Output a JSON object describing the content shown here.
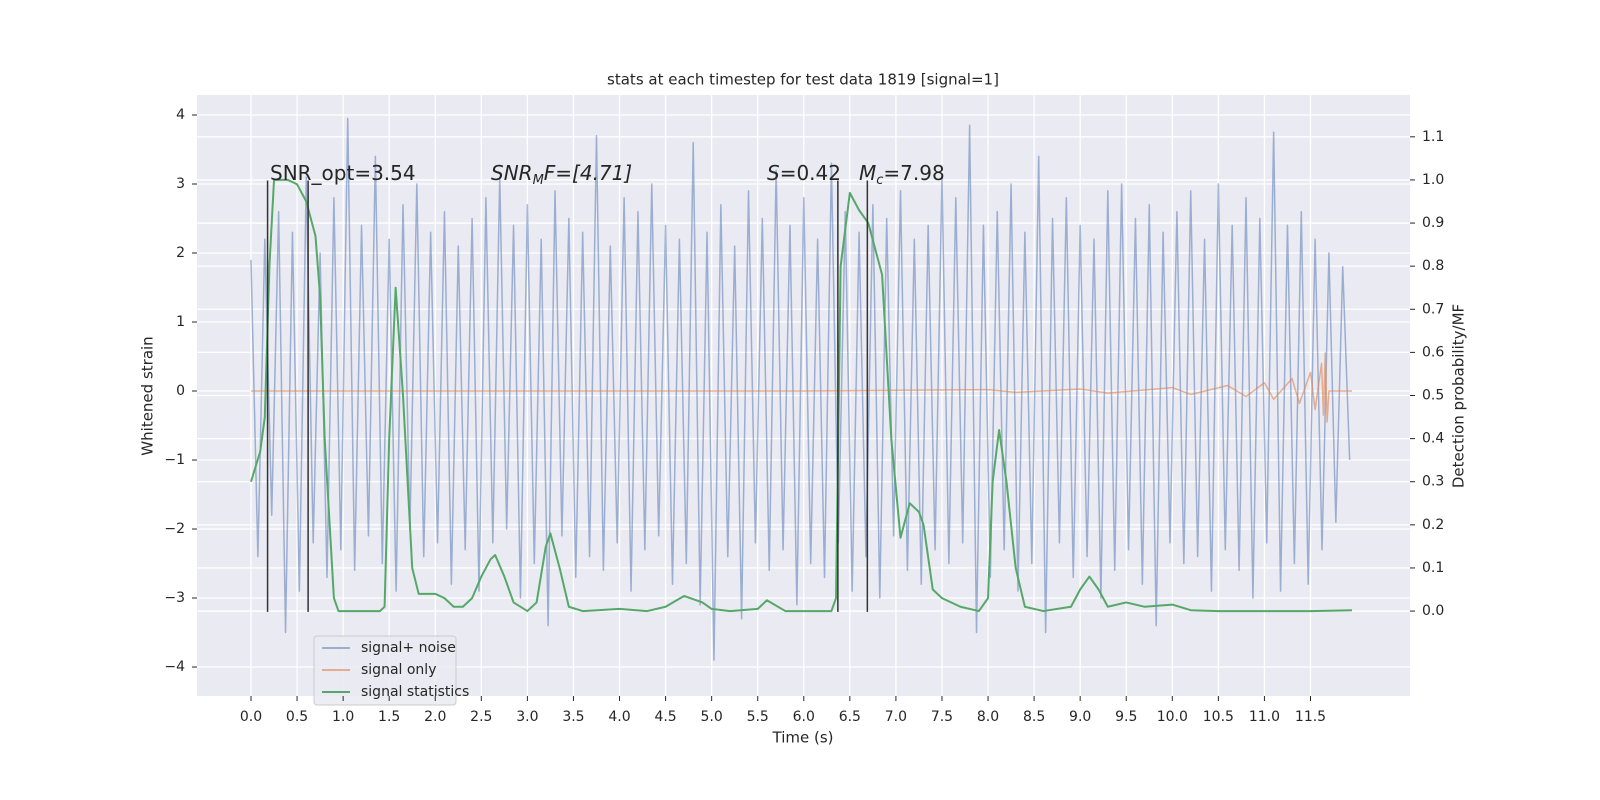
{
  "chart_data": {
    "type": "line",
    "title": "stats at each timestep for test data 1819 [signal=1]",
    "xlabel": "Time (s)",
    "ylabel": "Whitened strain",
    "y2label": "Detection probability/MF",
    "xlim": [
      -0.586,
      12.58
    ],
    "ylim": [
      -4.42,
      4.29
    ],
    "y2lim": [
      -0.197,
      1.197
    ],
    "xticks": [
      {
        "value": 0,
        "label": "0.0"
      },
      0.5,
      {
        "value": 1,
        "label": "1.0"
      },
      1.5,
      {
        "value": 2,
        "label": "2.0"
      },
      2.5,
      {
        "value": 3,
        "label": "3.0"
      },
      3.5,
      {
        "value": 4,
        "label": "4.0"
      },
      4.5,
      {
        "value": 5,
        "label": "5.0"
      },
      5.5,
      {
        "value": 6,
        "label": "6.0"
      },
      6.5,
      {
        "value": 7,
        "label": "7.0"
      },
      7.5,
      {
        "value": 8,
        "label": "8.0"
      },
      8.5,
      {
        "value": 9,
        "label": "9.0"
      },
      9.5,
      {
        "value": 10,
        "label": "10.0"
      },
      10.5,
      {
        "value": 11,
        "label": "11.0"
      },
      11.5
    ],
    "yticks": [
      {
        "value": -4,
        "label": "−4"
      },
      {
        "value": -3,
        "label": "−3"
      },
      {
        "value": -2,
        "label": "−2"
      },
      {
        "value": -1,
        "label": "−1"
      },
      0,
      1,
      2,
      3,
      4
    ],
    "y2ticks": [
      {
        "value": 0,
        "label": "0.0"
      },
      0.1,
      0.2,
      0.3,
      0.4,
      0.5,
      0.6,
      0.7,
      0.8,
      0.9,
      {
        "value": 1,
        "label": "1.0"
      },
      1.1
    ],
    "grid": true,
    "legend": "lower left",
    "series": [
      {
        "name": "signal+ noise",
        "color": "#4c72b0",
        "x": [
          0,
          0.075,
          0.15,
          0.225,
          0.3,
          0.375,
          0.45,
          0.525,
          0.6,
          0.675,
          0.75,
          0.825,
          0.9,
          0.975,
          1.05,
          1.125,
          1.2,
          1.275,
          1.35,
          1.425,
          1.5,
          1.575,
          1.65,
          1.725,
          1.8,
          1.875,
          1.95,
          2.025,
          2.1,
          2.175,
          2.25,
          2.325,
          2.4,
          2.475,
          2.55,
          2.625,
          2.7,
          2.775,
          2.85,
          2.925,
          3,
          3.075,
          3.15,
          3.225,
          3.3,
          3.375,
          3.45,
          3.525,
          3.6,
          3.675,
          3.75,
          3.825,
          3.9,
          3.975,
          4.05,
          4.125,
          4.2,
          4.275,
          4.35,
          4.425,
          4.5,
          4.575,
          4.65,
          4.725,
          4.8,
          4.875,
          4.95,
          5.025,
          5.1,
          5.175,
          5.25,
          5.325,
          5.4,
          5.475,
          5.55,
          5.625,
          5.7,
          5.775,
          5.85,
          5.925,
          6,
          6.075,
          6.15,
          6.225,
          6.3,
          6.375,
          6.45,
          6.525,
          6.6,
          6.675,
          6.75,
          6.825,
          6.9,
          6.975,
          7.05,
          7.125,
          7.2,
          7.275,
          7.35,
          7.425,
          7.5,
          7.575,
          7.65,
          7.725,
          7.8,
          7.875,
          7.95,
          8.025,
          8.1,
          8.175,
          8.25,
          8.325,
          8.4,
          8.475,
          8.55,
          8.625,
          8.7,
          8.775,
          8.85,
          8.925,
          9,
          9.075,
          9.15,
          9.225,
          9.3,
          9.375,
          9.45,
          9.525,
          9.6,
          9.675,
          9.75,
          9.825,
          9.9,
          9.975,
          10.05,
          10.125,
          10.2,
          10.275,
          10.35,
          10.425,
          10.5,
          10.575,
          10.65,
          10.725,
          10.8,
          10.875,
          10.95,
          11.025,
          11.1,
          11.175,
          11.25,
          11.325,
          11.4,
          11.475,
          11.55,
          11.625,
          11.7,
          11.775,
          11.85,
          11.925
        ],
        "values": [
          1.9,
          -2.4,
          2.2,
          -1.8,
          2.6,
          -3.5,
          2.3,
          -2.9,
          3.1,
          -2.2,
          2.0,
          -2.7,
          2.8,
          -2.3,
          3.95,
          -2.6,
          2.4,
          -2.1,
          3.4,
          -2.5,
          2.2,
          -2.9,
          2.7,
          -2.0,
          3.0,
          -2.4,
          2.3,
          -2.2,
          2.6,
          -2.8,
          2.1,
          -2.3,
          2.5,
          -2.9,
          2.8,
          -2.2,
          3.1,
          -2.0,
          2.4,
          -3.0,
          2.7,
          -2.5,
          2.2,
          -3.4,
          2.9,
          -2.1,
          2.5,
          -2.7,
          2.3,
          -2.4,
          3.7,
          -2.6,
          2.1,
          -2.2,
          2.8,
          -2.9,
          2.6,
          -2.3,
          3.0,
          -2.1,
          2.4,
          -2.8,
          2.2,
          -2.5,
          3.6,
          -3.1,
          2.3,
          -3.9,
          2.7,
          -2.4,
          2.1,
          -3.3,
          2.9,
          -2.2,
          2.5,
          -2.6,
          3.2,
          -2.3,
          2.4,
          -3.1,
          2.8,
          -2.5,
          2.2,
          -2.7,
          3.3,
          -2.2,
          2.6,
          -2.9,
          2.3,
          -2.4,
          2.7,
          -3.0,
          2.5,
          -2.1,
          2.9,
          -2.6,
          2.2,
          -2.8,
          2.4,
          -2.3,
          3.1,
          -2.5,
          2.8,
          -2.2,
          3.85,
          -3.5,
          2.4,
          -2.7,
          2.6,
          -2.3,
          3.0,
          -2.9,
          2.3,
          -2.5,
          3.4,
          -3.5,
          2.5,
          -2.2,
          2.8,
          -2.7,
          2.4,
          -2.4,
          2.2,
          -3.0,
          2.9,
          -2.6,
          3.0,
          -2.3,
          2.5,
          -2.8,
          2.7,
          -3.4,
          2.3,
          -2.2,
          2.6,
          -2.5,
          2.9,
          -2.4,
          2.2,
          -2.9,
          3.0,
          -2.3,
          2.4,
          -2.6,
          2.8,
          -3.0,
          2.5,
          -2.2,
          3.75,
          -2.9,
          2.4,
          -2.5,
          2.6,
          -2.8,
          2.2,
          -2.3,
          2.0,
          -1.9,
          1.8,
          -1.0
        ]
      },
      {
        "name": "signal only",
        "color": "#dd8452",
        "x": [
          0,
          6,
          8,
          8.3,
          9,
          9.3,
          10,
          10.2,
          10.6,
          10.8,
          11.0,
          11.1,
          11.3,
          11.38,
          11.5,
          11.55,
          11.62,
          11.64,
          11.66,
          11.68,
          11.7,
          11.95
        ],
        "values": [
          0,
          0,
          0.02,
          -0.02,
          0.03,
          -0.03,
          0.05,
          -0.05,
          0.08,
          -0.08,
          0.12,
          -0.12,
          0.18,
          -0.18,
          0.27,
          -0.27,
          0.4,
          -0.35,
          0.55,
          -0.45,
          0,
          0
        ]
      },
      {
        "name": "signal statistics",
        "color": "#55a868",
        "axis": "y2",
        "x": [
          0,
          0.1,
          0.15,
          0.2,
          0.25,
          0.3,
          0.4,
          0.5,
          0.6,
          0.7,
          0.75,
          0.8,
          0.9,
          0.95,
          1.4,
          1.45,
          1.5,
          1.57,
          1.65,
          1.75,
          1.82,
          1.9,
          2.0,
          2.1,
          2.2,
          2.3,
          2.4,
          2.5,
          2.6,
          2.65,
          2.75,
          2.85,
          3.0,
          3.1,
          3.2,
          3.25,
          3.35,
          3.45,
          3.6,
          4.0,
          4.3,
          4.5,
          4.7,
          4.9,
          5.0,
          5.2,
          5.5,
          5.6,
          5.8,
          6.3,
          6.35,
          6.4,
          6.5,
          6.6,
          6.7,
          6.85,
          6.95,
          7.05,
          7.15,
          7.25,
          7.3,
          7.4,
          7.5,
          7.7,
          7.9,
          8.0,
          8.05,
          8.12,
          8.2,
          8.3,
          8.4,
          8.6,
          8.9,
          9.0,
          9.1,
          9.2,
          9.3,
          9.5,
          9.7,
          10.0,
          10.2,
          10.5,
          11.0,
          11.5,
          11.95
        ],
        "values": [
          0.3,
          0.37,
          0.45,
          0.8,
          1.0,
          1.0,
          1.0,
          0.99,
          0.95,
          0.87,
          0.73,
          0.4,
          0.03,
          0.0,
          0.0,
          0.01,
          0.4,
          0.75,
          0.5,
          0.1,
          0.04,
          0.04,
          0.04,
          0.03,
          0.01,
          0.01,
          0.03,
          0.08,
          0.12,
          0.13,
          0.08,
          0.02,
          0.0,
          0.02,
          0.15,
          0.18,
          0.1,
          0.01,
          0.0,
          0.005,
          0.0,
          0.01,
          0.035,
          0.02,
          0.005,
          0.0,
          0.005,
          0.025,
          0.0,
          0.0,
          0.03,
          0.8,
          0.97,
          0.93,
          0.9,
          0.78,
          0.4,
          0.17,
          0.25,
          0.23,
          0.2,
          0.05,
          0.03,
          0.01,
          0.0,
          0.03,
          0.3,
          0.42,
          0.3,
          0.1,
          0.01,
          0.0,
          0.01,
          0.05,
          0.08,
          0.05,
          0.01,
          0.02,
          0.01,
          0.015,
          0.002,
          0.0,
          0.0,
          0.0,
          0.002
        ]
      }
    ],
    "vlines": {
      "x": [
        0.18,
        0.62,
        6.37,
        6.69
      ],
      "ymin": -3.2,
      "ymax": 3.05
    },
    "annotations": [
      {
        "text": "SNR_opt=3.54"
      },
      {
        "main": "SNR",
        "sub": "M",
        "tail": "F=[4.71]"
      },
      {
        "main": "S",
        "tail": "=0.42"
      },
      {
        "main": "M",
        "sub": "c",
        "tail": "=7.98"
      }
    ]
  }
}
